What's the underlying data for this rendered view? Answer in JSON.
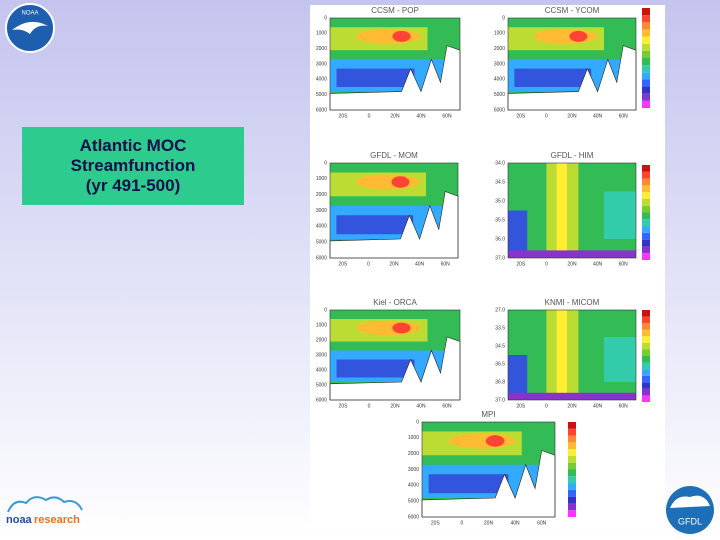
{
  "logos": {
    "noaa": "NOAA",
    "noaa_prefix": "noaa",
    "research": "research",
    "gfdl": "GFDL"
  },
  "title_box": {
    "lines": [
      "Atlantic MOC",
      "Streamfunction",
      "(yr 491-500)"
    ]
  },
  "panels": [
    {
      "title": "CCSM - POP",
      "kind": "depth",
      "yticks": [
        "0",
        "1000",
        "2000",
        "3000",
        "4000",
        "5000",
        "6000"
      ],
      "xticks": [
        "20S",
        "0",
        "20N",
        "40N",
        "60N"
      ]
    },
    {
      "title": "CCSM - YCOM",
      "kind": "depth",
      "yticks": [
        "0",
        "1000",
        "2000",
        "3000",
        "4000",
        "5000",
        "6000"
      ],
      "xticks": [
        "20S",
        "0",
        "20N",
        "40N",
        "60N"
      ]
    },
    {
      "title": "GFDL - MOM",
      "kind": "depth",
      "yticks": [
        "0",
        "1000",
        "2000",
        "3000",
        "4000",
        "5000",
        "6000"
      ],
      "xticks": [
        "20S",
        "0",
        "20N",
        "40N",
        "60N"
      ]
    },
    {
      "title": "GFDL - HIM",
      "kind": "density",
      "yticks": [
        "34.0",
        "34.5",
        "35.0",
        "35.5",
        "36.0",
        "37.0"
      ],
      "xticks": [
        "20S",
        "0",
        "20N",
        "40N",
        "60N"
      ]
    },
    {
      "title": "Kiel - ORCA",
      "kind": "depth",
      "yticks": [
        "0",
        "1000",
        "2000",
        "3000",
        "4000",
        "5000",
        "6000"
      ],
      "xticks": [
        "20S",
        "0",
        "20N",
        "40N",
        "60N"
      ]
    },
    {
      "title": "KNMI - MICOM",
      "kind": "density",
      "yticks": [
        "27.0",
        "33.5",
        "34.5",
        "36.5",
        "36.8",
        "37.0"
      ],
      "xticks": [
        "20S",
        "0",
        "20N",
        "40N",
        "60N"
      ]
    },
    {
      "title": "MPI",
      "kind": "depth",
      "yticks": [
        "0",
        "1000",
        "2000",
        "3000",
        "4000",
        "5000",
        "6000"
      ],
      "xticks": [
        "20S",
        "0",
        "20N",
        "40N",
        "60N"
      ]
    }
  ]
}
